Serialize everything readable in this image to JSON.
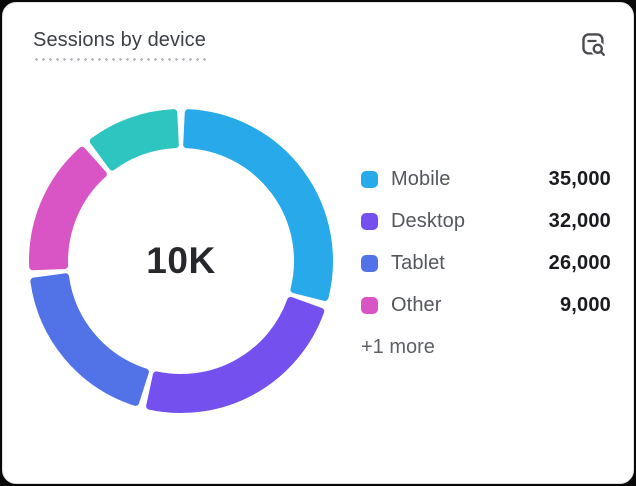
{
  "card": {
    "title": "Sessions by device",
    "header_icon": "file-search-icon"
  },
  "chart_data": {
    "type": "donut",
    "title": "Sessions by device",
    "center_label": "10K",
    "legend_position": "right",
    "categories": [
      "Mobile",
      "Desktop",
      "Tablet",
      "Other"
    ],
    "values": [
      35000,
      32000,
      26000,
      9000
    ],
    "series": [
      {
        "label": "Mobile",
        "value": 35000,
        "value_display": "35,000",
        "color": "#28a9e9",
        "start_angle": 0,
        "end_angle": 107
      },
      {
        "label": "Desktop",
        "value": 32000,
        "value_display": "32,000",
        "color": "#7450ef",
        "start_angle": 107,
        "end_angle": 195
      },
      {
        "label": "Tablet",
        "value": 26000,
        "value_display": "26,000",
        "color": "#5272e8",
        "start_angle": 195,
        "end_angle": 265
      },
      {
        "label": "Other",
        "value": 9000,
        "value_display": "9,000",
        "color": "#d954c5",
        "start_angle": 265,
        "end_angle": 321
      }
    ],
    "extra_segment": {
      "label": "+1 more",
      "color": "#2ec4bf",
      "start_angle": 321,
      "end_angle": 360
    },
    "more_label": "+1 more"
  },
  "colors": {
    "card_background": "#ffffff",
    "page_background": "#0a0a0b",
    "title_text": "#3d4046",
    "legend_label_text": "#54575e",
    "legend_value_text": "#1a1b1f",
    "center_label_text": "#27282c",
    "icon": "#4a4b50"
  }
}
